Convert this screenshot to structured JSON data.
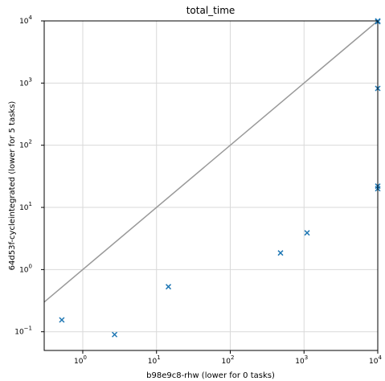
{
  "chart_data": {
    "type": "scatter",
    "title": "total_time",
    "xlabel": "b98e9c8-rhw (lower for 0 tasks)",
    "ylabel": "64d53f-cycleintegrated (lower for 5 tasks)",
    "xscale": "log",
    "yscale": "log",
    "xlim": [
      0.3,
      10000
    ],
    "ylim": [
      0.05,
      10000
    ],
    "grid": true,
    "x_ticks": [
      {
        "value": 1,
        "base": "10",
        "exp": "0"
      },
      {
        "value": 10,
        "base": "10",
        "exp": "1"
      },
      {
        "value": 100,
        "base": "10",
        "exp": "2"
      },
      {
        "value": 1000,
        "base": "10",
        "exp": "3"
      },
      {
        "value": 10000,
        "base": "10",
        "exp": "4"
      }
    ],
    "y_ticks": [
      {
        "value": 0.1,
        "base": "10",
        "exp": "−1"
      },
      {
        "value": 1,
        "base": "10",
        "exp": "0"
      },
      {
        "value": 10,
        "base": "10",
        "exp": "1"
      },
      {
        "value": 100,
        "base": "10",
        "exp": "2"
      },
      {
        "value": 1000,
        "base": "10",
        "exp": "3"
      },
      {
        "value": 10000,
        "base": "10",
        "exp": "4"
      }
    ],
    "reference_line": {
      "type": "y=x",
      "color": "#999999"
    },
    "marker_color": "#1f77b4",
    "points": [
      {
        "x": 0.52,
        "y": 0.155
      },
      {
        "x": 2.7,
        "y": 0.09
      },
      {
        "x": 14.5,
        "y": 0.53
      },
      {
        "x": 480,
        "y": 1.85
      },
      {
        "x": 1100,
        "y": 3.9
      },
      {
        "x": 10000,
        "y": 10000
      },
      {
        "x": 10000,
        "y": 9700
      },
      {
        "x": 10000,
        "y": 820
      },
      {
        "x": 10000,
        "y": 22
      },
      {
        "x": 10000,
        "y": 20
      }
    ]
  }
}
